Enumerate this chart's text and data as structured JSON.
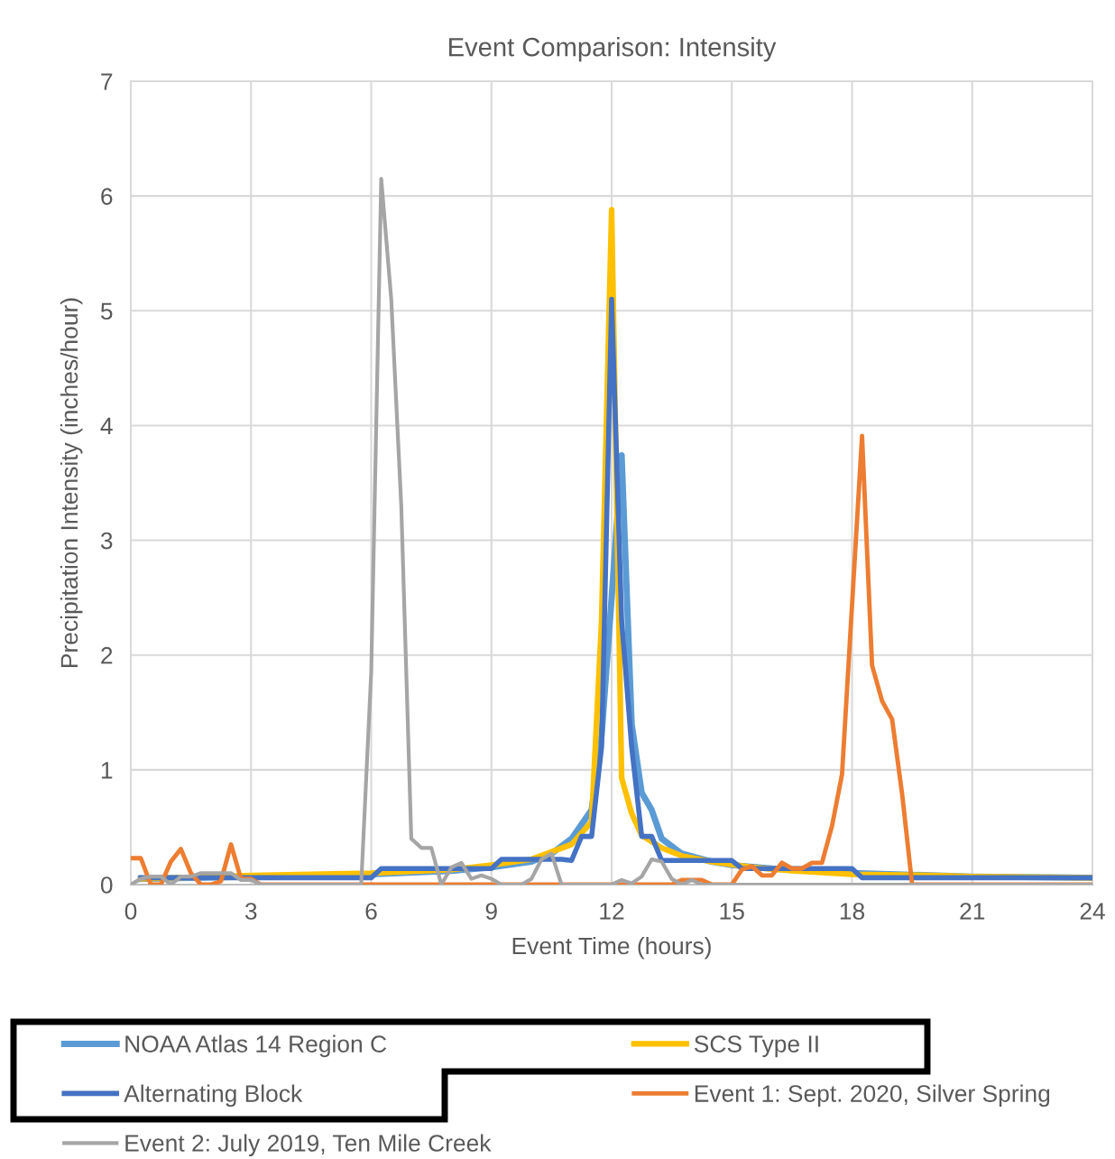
{
  "chart_data": {
    "type": "line",
    "title": "Event Comparison: Intensity",
    "xlabel": "Event Time (hours)",
    "ylabel": "Precipitation Intensity (inches/hour)",
    "xlim": [
      0,
      24
    ],
    "xticks": [
      0,
      3,
      6,
      9,
      12,
      15,
      18,
      21,
      24
    ],
    "ylim": [
      0,
      7
    ],
    "yticks": [
      0,
      1,
      2,
      3,
      4,
      5,
      6,
      7
    ],
    "grid": true,
    "legend": "bottom",
    "marker": "none",
    "line_style": "solid",
    "series": [
      {
        "name": "NOAA Atlas 14 Region C",
        "color": "#5b9bd5",
        "x": [
          0.25,
          3,
          6,
          8,
          9,
          10,
          10.5,
          11,
          11.5,
          11.75,
          12,
          12.25,
          12.5,
          12.75,
          13,
          13.25,
          13.75,
          14.5,
          15,
          16,
          18,
          21,
          24
        ],
        "values": [
          0.05,
          0.07,
          0.09,
          0.12,
          0.15,
          0.2,
          0.27,
          0.4,
          0.65,
          1.3,
          2.5,
          3.74,
          1.4,
          0.8,
          0.65,
          0.4,
          0.27,
          0.2,
          0.17,
          0.14,
          0.1,
          0.07,
          0.06
        ]
      },
      {
        "name": "SCS Type II",
        "color": "#ffc000",
        "x": [
          0.25,
          3,
          6,
          8,
          9,
          10,
          11,
          11.5,
          11.75,
          12,
          12.25,
          12.5,
          12.75,
          13.25,
          13.75,
          14.5,
          15.5,
          16.5,
          18,
          20,
          21,
          24
        ],
        "values": [
          0.05,
          0.08,
          0.1,
          0.13,
          0.17,
          0.22,
          0.35,
          0.55,
          2.3,
          5.88,
          0.93,
          0.62,
          0.43,
          0.32,
          0.25,
          0.2,
          0.15,
          0.12,
          0.09,
          0.08,
          0.07,
          0.06
        ]
      },
      {
        "name": "Alternating Block",
        "color": "#4472c4",
        "x": [
          0.25,
          6.0,
          6.25,
          9.0,
          9.25,
          10.75,
          11.0,
          11.25,
          11.5,
          11.75,
          12.0,
          12.25,
          12.5,
          12.75,
          13.0,
          13.25,
          15.0,
          15.25,
          18.0,
          18.25,
          24
        ],
        "values": [
          0.06,
          0.06,
          0.14,
          0.14,
          0.22,
          0.22,
          0.21,
          0.42,
          0.42,
          1.2,
          5.1,
          2.3,
          1.2,
          0.42,
          0.42,
          0.21,
          0.21,
          0.14,
          0.14,
          0.06,
          0.06
        ]
      },
      {
        "name": "Event 1: Sept. 2020, Silver Spring",
        "color": "#ed7d31",
        "x": [
          0,
          0.25,
          0.5,
          0.75,
          1.0,
          1.25,
          1.5,
          1.75,
          2.0,
          2.25,
          2.5,
          2.75,
          3.0,
          3.25,
          13.5,
          13.75,
          14.0,
          14.25,
          14.5,
          15.0,
          15.25,
          15.5,
          15.75,
          16.0,
          16.25,
          16.5,
          16.75,
          17.0,
          17.25,
          17.5,
          17.75,
          18.25,
          18.5,
          18.75,
          19.0,
          19.25,
          19.5,
          24
        ],
        "values": [
          0.23,
          0.23,
          0,
          0,
          0.2,
          0.31,
          0.1,
          0,
          0,
          0.03,
          0.35,
          0.05,
          0.05,
          0,
          0,
          0.04,
          0.04,
          0.04,
          0,
          0,
          0.13,
          0.16,
          0.08,
          0.08,
          0.19,
          0.14,
          0.14,
          0.19,
          0.19,
          0.51,
          0.96,
          3.91,
          1.91,
          1.6,
          1.44,
          0.79,
          0,
          0
        ]
      },
      {
        "name": "Event 2: July 2019, Ten Mile Creek",
        "color": "#a5a5a5",
        "x": [
          0,
          0.25,
          0.5,
          0.75,
          1.0,
          1.25,
          1.5,
          1.75,
          2.0,
          2.25,
          2.5,
          2.75,
          3.0,
          3.25,
          5.75,
          6.0,
          6.25,
          6.5,
          6.75,
          7.0,
          7.25,
          7.5,
          7.75,
          8.0,
          8.25,
          8.5,
          8.75,
          9.0,
          9.25,
          9.75,
          10.0,
          10.25,
          10.5,
          10.75,
          12.0,
          12.25,
          12.5,
          12.75,
          13.0,
          13.25,
          13.5,
          13.75,
          14.0,
          14.25,
          24
        ],
        "values": [
          0,
          0.05,
          0.07,
          0.07,
          0,
          0.07,
          0.07,
          0.1,
          0.1,
          0.1,
          0.1,
          0.04,
          0.04,
          0,
          0,
          1.85,
          6.15,
          5.1,
          3.3,
          0.4,
          0.32,
          0.32,
          0,
          0.15,
          0.19,
          0.05,
          0.08,
          0.05,
          0,
          0,
          0.05,
          0.22,
          0.27,
          0,
          0,
          0.04,
          0.01,
          0.07,
          0.22,
          0.2,
          0.05,
          0,
          0.04,
          0,
          0
        ]
      }
    ]
  }
}
